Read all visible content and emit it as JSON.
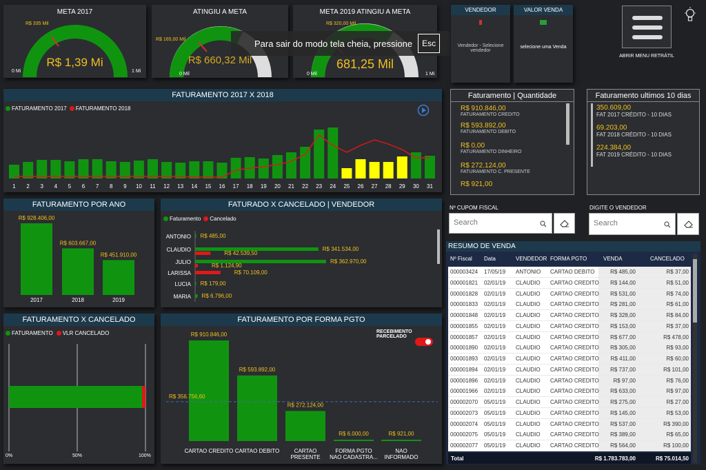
{
  "colors": {
    "green": "#109410",
    "red": "#e01818",
    "yellow": "#ffff00",
    "gold": "#f2c01d",
    "header": "#1d3a4c",
    "panel": "#2b2d31"
  },
  "gauges": [
    {
      "title": "META 2017",
      "target": "R$ 335 Mil",
      "value": "R$ 1,39 Mi",
      "min": "0 Mi",
      "max": "1 Mi",
      "fill_fraction": 1.0
    },
    {
      "title": "ATINGIU A META",
      "target": "R$ 165,00 Mil",
      "value": "R$ 660,32 Mil",
      "min": "0 Mil",
      "max": "",
      "fill_fraction": 0.62
    },
    {
      "title": "META 2019 ATINGIU A META",
      "target": "R$ 320,00 Mil",
      "value": "681,25 Mil",
      "min": "0 Mil",
      "max": "1 Mi",
      "fill_fraction": 0.68
    }
  ],
  "overlay": {
    "text": "Para sair do modo tela cheia, pressione",
    "key": "Esc"
  },
  "filters": {
    "vendedor": {
      "title": "VENDEDOR",
      "text": "Vendedor - Selecione vendedor"
    },
    "valor": {
      "title": "VALOR VENDA",
      "text": "selecione uma Venda"
    },
    "menu_label": "ABRIR MENU RETRÁTIL"
  },
  "fat_2017_2018": {
    "title": "FATURAMENTO 2017 X 2018",
    "legend": [
      "FATURAMENTO 2017",
      "FATURAMENTO 2018"
    ],
    "chart_data": {
      "type": "bar",
      "categories": [
        "1",
        "2",
        "3",
        "4",
        "5",
        "6",
        "7",
        "8",
        "9",
        "10",
        "11",
        "12",
        "13",
        "14",
        "15",
        "16",
        "17",
        "18",
        "19",
        "20",
        "21",
        "22",
        "23",
        "24",
        "25",
        "26",
        "27",
        "28",
        "29",
        "30",
        "31"
      ],
      "series": [
        {
          "name": "FATURAMENTO 2017",
          "values": [
            20,
            24,
            27,
            27,
            25,
            28,
            28,
            25,
            24,
            26,
            28,
            24,
            23,
            25,
            25,
            23,
            30,
            31,
            29,
            34,
            38,
            46,
            71,
            74,
            15,
            28,
            24,
            24,
            32,
            38,
            33
          ],
          "highlight_days": [
            25,
            26,
            27,
            28,
            29
          ]
        },
        {
          "name": "FATURAMENTO 2018",
          "values": [
            3,
            3,
            3,
            3,
            3,
            3,
            3,
            3,
            3,
            3,
            3,
            3,
            3,
            2,
            2,
            2,
            12,
            15,
            17,
            20,
            25,
            35,
            63,
            48,
            38,
            48,
            56,
            50,
            42,
            30,
            30
          ]
        }
      ]
    }
  },
  "fat_qtd": {
    "title": "Faturamento | Quantidade",
    "items": [
      {
        "value": "R$ 910.846,00",
        "label": "FATURAMENTO CREDITO"
      },
      {
        "value": "R$ 593.892,00",
        "label": "FATURAMENTO DEBITO"
      },
      {
        "value": "R$ 0,00",
        "label": "FATURAMENTO DINHEIRO"
      },
      {
        "value": "R$ 272.124,00",
        "label": "FATURAMENTO C. PRESENTE"
      },
      {
        "value": "R$ 921,00",
        "label": ""
      }
    ]
  },
  "fat_10": {
    "title": "Faturamento ultimos 10 dias",
    "items": [
      {
        "value": "350.609,00",
        "label": "FAT 2017 CRÉDITO - 10 DIAS"
      },
      {
        "value": "69.203,00",
        "label": "FAT 2018 CRÉDITO - 10 DIAS"
      },
      {
        "value": "224.384,00",
        "label": "FAT 2019 CRÉDITO - 10 DIAS"
      }
    ]
  },
  "fat_ano": {
    "title": "FATURAMENTO POR ANO",
    "chart_data": {
      "type": "bar",
      "categories": [
        "2017",
        "2018",
        "2019"
      ],
      "values": [
        928406,
        603667,
        451910
      ],
      "labels": [
        "R$ 928.406,00",
        "R$ 603.667,00",
        "R$ 451.910,00"
      ]
    }
  },
  "fat_cancel_vend": {
    "title": "FATURADO X CANCELADO | VENDEDOR",
    "legend": [
      "Faturamento",
      "Cancelado"
    ],
    "chart_data": {
      "type": "bar",
      "categories": [
        "ANTONIO",
        "CLAUDIO",
        "JULIO",
        "LARISSA",
        "LUCIA",
        "MARIA"
      ],
      "series": [
        {
          "name": "Faturamento",
          "values": [
            485,
            341534,
            362970,
            0,
            179,
            6796
          ],
          "labels": [
            "R$ 485,00",
            "R$ 341.534,00",
            "R$ 362.970,00",
            "",
            "R$ 179,00",
            "R$ 6.796,00"
          ]
        },
        {
          "name": "Cancelado",
          "values": [
            0,
            42539.5,
            1124.9,
            70109,
            0,
            0
          ],
          "labels": [
            "",
            "R$ 42.539,50",
            "R$ 1.124,90",
            "R$ 70.109,00",
            "",
            ""
          ]
        }
      ]
    }
  },
  "fat_x_cancel": {
    "title": "FATURAMENTO X CANCELADO",
    "legend": [
      "FATURAMENTO",
      "VLR CANCELADO"
    ],
    "ticks": [
      "0%",
      "50%",
      "100%"
    ],
    "chart_data": {
      "type": "bar",
      "values_pct": [
        97.5,
        2.5
      ]
    }
  },
  "forma_pgto": {
    "title": "FATURAMENTO POR FORMA PGTO",
    "toggle_label": "RECEBIMENTO PARCELADO",
    "avg_label": "R$ 356.756,60",
    "chart_data": {
      "type": "bar",
      "categories": [
        "CARTAO CREDITO",
        "CARTAO DEBITO",
        "CARTAO PRESENTE",
        "FORMA PGTO NAO CADASTRA...",
        "NAO INFORMADO"
      ],
      "values": [
        910846,
        593892,
        272124,
        6000,
        921
      ],
      "labels": [
        "R$ 910.846,00",
        "R$ 593.892,00",
        "R$ 272.124,00",
        "R$ 6.000,00",
        "R$ 921,00"
      ],
      "average": 356756.6
    }
  },
  "cupom": {
    "label": "Nº CUPOM FISCAL",
    "placeholder": "Search"
  },
  "vendedor_search": {
    "label": "DIGITE O VENDEDOR",
    "placeholder": "Search"
  },
  "resumo": {
    "title": "RESUMO DE VENDA",
    "columns": [
      "Nº Fiscal",
      "Data",
      "VENDEDOR",
      "FORMA PGTO",
      "VENDA",
      "CANCELADO"
    ],
    "rows": [
      [
        "000003424",
        "17/05/19",
        "ANTONIO",
        "CARTAO DEBITO",
        "R$ 485,00",
        "R$ 37,00"
      ],
      [
        "000001821",
        "02/01/19",
        "CLAUDIO",
        "CARTAO CREDITO",
        "R$ 144,00",
        "R$ 51,00"
      ],
      [
        "000001828",
        "02/01/19",
        "CLAUDIO",
        "CARTAO CREDITO",
        "R$ 531,00",
        "R$ 74,00"
      ],
      [
        "000001833",
        "02/01/19",
        "CLAUDIO",
        "CARTAO CREDITO",
        "R$ 281,00",
        "R$ 61,00"
      ],
      [
        "000001848",
        "02/01/19",
        "CLAUDIO",
        "CARTAO CREDITO",
        "R$ 328,00",
        "R$ 84,00"
      ],
      [
        "000001855",
        "02/01/19",
        "CLAUDIO",
        "CARTAO CREDITO",
        "R$ 153,00",
        "R$ 37,00"
      ],
      [
        "000001857",
        "02/01/19",
        "CLAUDIO",
        "CARTAO CREDITO",
        "R$ 677,00",
        "R$ 478,00"
      ],
      [
        "000001890",
        "02/01/19",
        "CLAUDIO",
        "CARTAO CREDITO",
        "R$ 305,00",
        "R$ 93,00"
      ],
      [
        "000001893",
        "02/01/19",
        "CLAUDIO",
        "CARTAO CREDITO",
        "R$ 411,00",
        "R$ 60,00"
      ],
      [
        "000001894",
        "02/01/19",
        "CLAUDIO",
        "CARTAO CREDITO",
        "R$ 737,00",
        "R$ 101,00"
      ],
      [
        "000001896",
        "02/01/19",
        "CLAUDIO",
        "CARTAO CREDITO",
        "R$ 97,00",
        "R$ 76,00"
      ],
      [
        "000001966",
        "02/01/19",
        "CLAUDIO",
        "CARTAO CREDITO",
        "R$ 633,00",
        "R$ 97,00"
      ],
      [
        "000002070",
        "05/01/19",
        "CLAUDIO",
        "CARTAO CREDITO",
        "R$ 275,00",
        "R$ 27,00"
      ],
      [
        "000002073",
        "05/01/19",
        "CLAUDIO",
        "CARTAO CREDITO",
        "R$ 145,00",
        "R$ 53,00"
      ],
      [
        "000002074",
        "05/01/19",
        "CLAUDIO",
        "CARTAO CREDITO",
        "R$ 537,00",
        "R$ 390,00"
      ],
      [
        "000002075",
        "05/01/19",
        "CLAUDIO",
        "CARTAO CREDITO",
        "R$ 389,00",
        "R$ 65,00"
      ],
      [
        "000002077",
        "05/01/19",
        "CLAUDIO",
        "CARTAO CREDITO",
        "R$ 564,00",
        "R$ 100,00"
      ]
    ],
    "total": {
      "label": "Total",
      "venda": "R$ 1.783.783,00",
      "cancelado": "R$ 75.014,50"
    }
  }
}
